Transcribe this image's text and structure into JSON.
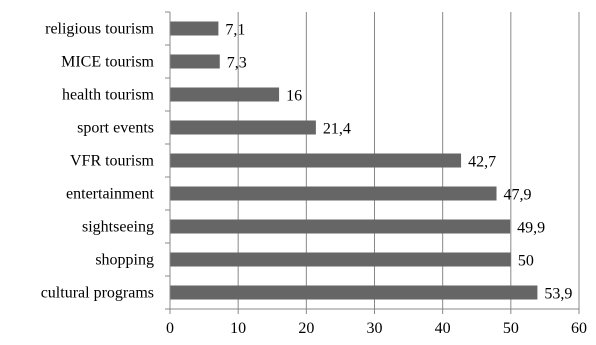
{
  "chart_data": {
    "type": "bar",
    "orientation": "horizontal",
    "categories": [
      "religious tourism",
      "MICE tourism",
      "health tourism",
      "sport events",
      "VFR tourism",
      "entertainment",
      "sightseeing",
      "shopping",
      "cultural programs"
    ],
    "values": [
      7.1,
      7.3,
      16,
      21.4,
      42.7,
      47.9,
      49.9,
      50,
      53.9
    ],
    "value_labels": [
      "7,1",
      "7,3",
      "16",
      "21,4",
      "42,7",
      "47,9",
      "49,9",
      "50",
      "53,9"
    ],
    "xlim": [
      0,
      60
    ],
    "xticks": [
      0,
      10,
      20,
      30,
      40,
      50,
      60
    ],
    "xtick_labels": [
      "0",
      "10",
      "20",
      "30",
      "40",
      "50",
      "60"
    ],
    "grid": "vertical",
    "legend": "none",
    "bar_color": "#666666",
    "grid_color": "#888888",
    "title": "",
    "xlabel": "",
    "ylabel": ""
  }
}
